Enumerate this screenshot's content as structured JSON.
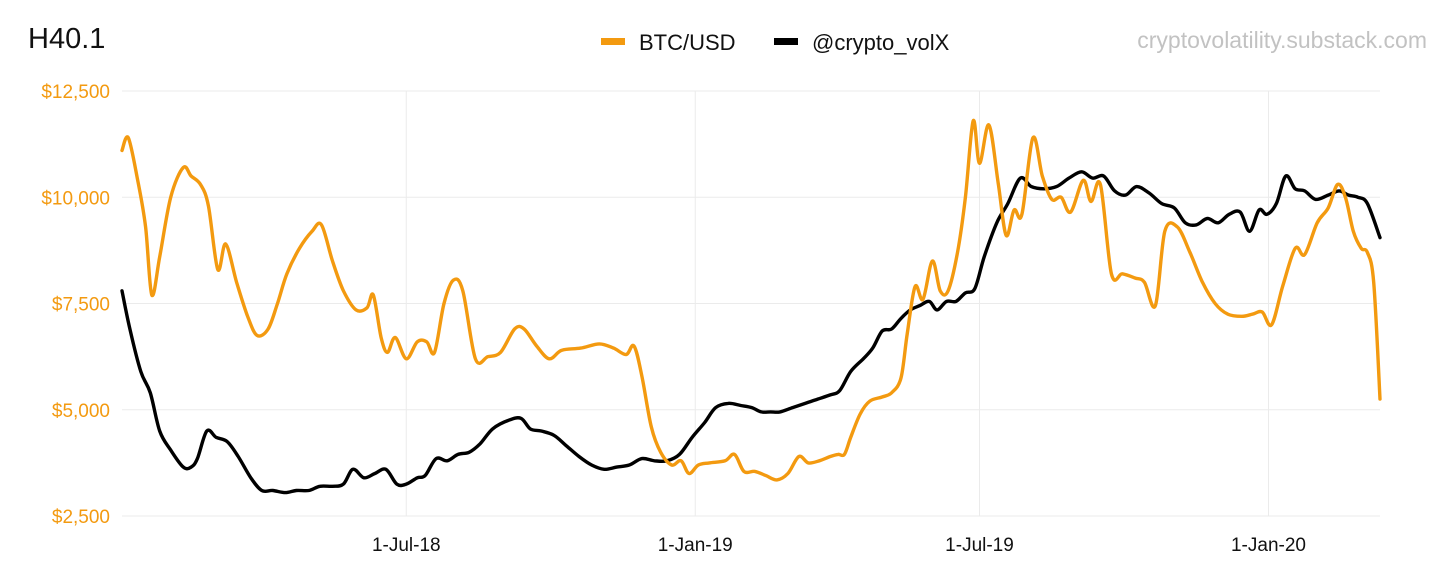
{
  "colors": {
    "btc": "#f39a10",
    "vol": "#000000",
    "grid": "#ebebeb",
    "watermark": "#c2c2c2"
  },
  "chart_data": {
    "type": "line",
    "title": "H40.1",
    "source_label": "cryptovolatility.substack.com",
    "x_type": "date",
    "xlim": [
      "2018-01-01",
      "2020-03-12"
    ],
    "x_ticks": [
      {
        "value": "2018-07-01",
        "label": "1-Jul-18"
      },
      {
        "value": "2019-01-01",
        "label": "1-Jan-19"
      },
      {
        "value": "2019-07-01",
        "label": "1-Jul-19"
      },
      {
        "value": "2020-01-01",
        "label": "1-Jan-20"
      }
    ],
    "ylim": [
      2500,
      12500
    ],
    "y_ticks": [
      {
        "value": 2500,
        "label": "$2,500"
      },
      {
        "value": 5000,
        "label": "$5,000"
      },
      {
        "value": 7500,
        "label": "$7,500"
      },
      {
        "value": 10000,
        "label": "$10,000"
      },
      {
        "value": 12500,
        "label": "$12,500"
      }
    ],
    "legend": {
      "position": "top-center"
    },
    "grid": true,
    "series": [
      {
        "name": "BTC/USD",
        "color": "#f39a10",
        "points": [
          [
            "2018-01-01",
            11100
          ],
          [
            "2018-01-05",
            11400
          ],
          [
            "2018-01-11",
            10400
          ],
          [
            "2018-01-16",
            9300
          ],
          [
            "2018-01-20",
            7700
          ],
          [
            "2018-01-25",
            8600
          ],
          [
            "2018-02-01",
            10000
          ],
          [
            "2018-02-09",
            10700
          ],
          [
            "2018-02-14",
            10500
          ],
          [
            "2018-02-20",
            10300
          ],
          [
            "2018-02-25",
            9800
          ],
          [
            "2018-03-03",
            8300
          ],
          [
            "2018-03-08",
            8900
          ],
          [
            "2018-03-15",
            8000
          ],
          [
            "2018-03-22",
            7200
          ],
          [
            "2018-03-28",
            6750
          ],
          [
            "2018-04-04",
            6900
          ],
          [
            "2018-04-10",
            7500
          ],
          [
            "2018-04-16",
            8200
          ],
          [
            "2018-04-24",
            8800
          ],
          [
            "2018-05-02",
            9200
          ],
          [
            "2018-05-08",
            9350
          ],
          [
            "2018-05-15",
            8500
          ],
          [
            "2018-05-22",
            7800
          ],
          [
            "2018-05-30",
            7350
          ],
          [
            "2018-06-06",
            7400
          ],
          [
            "2018-06-10",
            7700
          ],
          [
            "2018-06-15",
            6700
          ],
          [
            "2018-06-19",
            6350
          ],
          [
            "2018-06-24",
            6700
          ],
          [
            "2018-07-01",
            6200
          ],
          [
            "2018-07-08",
            6600
          ],
          [
            "2018-07-14",
            6600
          ],
          [
            "2018-07-19",
            6350
          ],
          [
            "2018-07-25",
            7500
          ],
          [
            "2018-07-31",
            8050
          ],
          [
            "2018-08-06",
            7800
          ],
          [
            "2018-08-14",
            6200
          ],
          [
            "2018-08-22",
            6250
          ],
          [
            "2018-08-30",
            6350
          ],
          [
            "2018-09-08",
            6900
          ],
          [
            "2018-09-14",
            6900
          ],
          [
            "2018-09-22",
            6500
          ],
          [
            "2018-09-30",
            6200
          ],
          [
            "2018-10-08",
            6400
          ],
          [
            "2018-10-20",
            6450
          ],
          [
            "2018-11-01",
            6550
          ],
          [
            "2018-11-10",
            6450
          ],
          [
            "2018-11-18",
            6300
          ],
          [
            "2018-11-23",
            6500
          ],
          [
            "2018-11-28",
            5800
          ],
          [
            "2018-12-04",
            4600
          ],
          [
            "2018-12-10",
            4000
          ],
          [
            "2018-12-17",
            3700
          ],
          [
            "2018-12-23",
            3800
          ],
          [
            "2018-12-28",
            3500
          ],
          [
            "2019-01-03",
            3700
          ],
          [
            "2019-01-10",
            3750
          ],
          [
            "2019-01-20",
            3800
          ],
          [
            "2019-01-26",
            3950
          ],
          [
            "2019-02-01",
            3550
          ],
          [
            "2019-02-08",
            3550
          ],
          [
            "2019-02-15",
            3450
          ],
          [
            "2019-02-22",
            3350
          ],
          [
            "2019-03-01",
            3500
          ],
          [
            "2019-03-08",
            3900
          ],
          [
            "2019-03-14",
            3750
          ],
          [
            "2019-03-21",
            3800
          ],
          [
            "2019-03-28",
            3900
          ],
          [
            "2019-04-02",
            3950
          ],
          [
            "2019-04-06",
            3950
          ],
          [
            "2019-04-10",
            4350
          ],
          [
            "2019-04-16",
            4900
          ],
          [
            "2019-04-22",
            5200
          ],
          [
            "2019-04-30",
            5300
          ],
          [
            "2019-05-06",
            5400
          ],
          [
            "2019-05-12",
            5750
          ],
          [
            "2019-05-16",
            6800
          ],
          [
            "2019-05-21",
            7900
          ],
          [
            "2019-05-26",
            7600
          ],
          [
            "2019-06-01",
            8500
          ],
          [
            "2019-06-06",
            7800
          ],
          [
            "2019-06-11",
            7800
          ],
          [
            "2019-06-17",
            8700
          ],
          [
            "2019-06-22",
            10000
          ],
          [
            "2019-06-27",
            11800
          ],
          [
            "2019-07-01",
            10800
          ],
          [
            "2019-07-07",
            11700
          ],
          [
            "2019-07-13",
            10300
          ],
          [
            "2019-07-18",
            9100
          ],
          [
            "2019-07-23",
            9700
          ],
          [
            "2019-07-28",
            9600
          ],
          [
            "2019-08-04",
            11400
          ],
          [
            "2019-08-10",
            10500
          ],
          [
            "2019-08-16",
            9950
          ],
          [
            "2019-08-22",
            10000
          ],
          [
            "2019-08-28",
            9650
          ],
          [
            "2019-09-05",
            10400
          ],
          [
            "2019-09-10",
            9900
          ],
          [
            "2019-09-16",
            10300
          ],
          [
            "2019-09-23",
            8200
          ],
          [
            "2019-09-30",
            8200
          ],
          [
            "2019-10-08",
            8100
          ],
          [
            "2019-10-14",
            8000
          ],
          [
            "2019-10-21",
            7450
          ],
          [
            "2019-10-27",
            9200
          ],
          [
            "2019-11-04",
            9300
          ],
          [
            "2019-11-12",
            8700
          ],
          [
            "2019-11-20",
            8000
          ],
          [
            "2019-11-28",
            7500
          ],
          [
            "2019-12-06",
            7250
          ],
          [
            "2019-12-15",
            7200
          ],
          [
            "2019-12-22",
            7250
          ],
          [
            "2019-12-28",
            7300
          ],
          [
            "2020-01-03",
            7000
          ],
          [
            "2020-01-10",
            7900
          ],
          [
            "2020-01-18",
            8800
          ],
          [
            "2020-01-24",
            8650
          ],
          [
            "2020-02-01",
            9400
          ],
          [
            "2020-02-08",
            9750
          ],
          [
            "2020-02-14",
            10300
          ],
          [
            "2020-02-19",
            10000
          ],
          [
            "2020-02-24",
            9200
          ],
          [
            "2020-02-29",
            8800
          ],
          [
            "2020-03-04",
            8700
          ],
          [
            "2020-03-08",
            8000
          ],
          [
            "2020-03-12",
            5250
          ]
        ]
      },
      {
        "name": "@crypto_volX",
        "color": "#000000",
        "points": [
          [
            "2018-01-01",
            7800
          ],
          [
            "2018-01-06",
            6900
          ],
          [
            "2018-01-13",
            5900
          ],
          [
            "2018-01-19",
            5400
          ],
          [
            "2018-01-25",
            4500
          ],
          [
            "2018-02-01",
            4050
          ],
          [
            "2018-02-09",
            3650
          ],
          [
            "2018-02-14",
            3650
          ],
          [
            "2018-02-18",
            3850
          ],
          [
            "2018-02-24",
            4500
          ],
          [
            "2018-03-02",
            4350
          ],
          [
            "2018-03-09",
            4250
          ],
          [
            "2018-03-16",
            3900
          ],
          [
            "2018-03-24",
            3400
          ],
          [
            "2018-03-31",
            3100
          ],
          [
            "2018-04-07",
            3100
          ],
          [
            "2018-04-15",
            3050
          ],
          [
            "2018-04-22",
            3100
          ],
          [
            "2018-04-30",
            3100
          ],
          [
            "2018-05-07",
            3200
          ],
          [
            "2018-05-15",
            3200
          ],
          [
            "2018-05-22",
            3250
          ],
          [
            "2018-05-28",
            3600
          ],
          [
            "2018-06-04",
            3400
          ],
          [
            "2018-06-11",
            3500
          ],
          [
            "2018-06-18",
            3600
          ],
          [
            "2018-06-25",
            3250
          ],
          [
            "2018-07-01",
            3250
          ],
          [
            "2018-07-08",
            3400
          ],
          [
            "2018-07-13",
            3450
          ],
          [
            "2018-07-20",
            3850
          ],
          [
            "2018-07-27",
            3800
          ],
          [
            "2018-08-03",
            3950
          ],
          [
            "2018-08-10",
            4000
          ],
          [
            "2018-08-17",
            4200
          ],
          [
            "2018-08-25",
            4550
          ],
          [
            "2018-09-04",
            4750
          ],
          [
            "2018-09-12",
            4800
          ],
          [
            "2018-09-18",
            4550
          ],
          [
            "2018-09-25",
            4500
          ],
          [
            "2018-10-03",
            4400
          ],
          [
            "2018-10-11",
            4150
          ],
          [
            "2018-10-19",
            3900
          ],
          [
            "2018-10-27",
            3700
          ],
          [
            "2018-11-04",
            3600
          ],
          [
            "2018-11-12",
            3650
          ],
          [
            "2018-11-20",
            3700
          ],
          [
            "2018-11-28",
            3850
          ],
          [
            "2018-12-06",
            3800
          ],
          [
            "2018-12-14",
            3800
          ],
          [
            "2018-12-22",
            3950
          ],
          [
            "2018-12-30",
            4350
          ],
          [
            "2019-01-07",
            4700
          ],
          [
            "2019-01-14",
            5050
          ],
          [
            "2019-01-22",
            5150
          ],
          [
            "2019-01-30",
            5100
          ],
          [
            "2019-02-06",
            5050
          ],
          [
            "2019-02-12",
            4950
          ],
          [
            "2019-02-18",
            4950
          ],
          [
            "2019-02-24",
            4950
          ],
          [
            "2019-03-04",
            5050
          ],
          [
            "2019-03-12",
            5150
          ],
          [
            "2019-03-20",
            5250
          ],
          [
            "2019-03-28",
            5350
          ],
          [
            "2019-04-03",
            5450
          ],
          [
            "2019-04-10",
            5900
          ],
          [
            "2019-04-18",
            6200
          ],
          [
            "2019-04-24",
            6450
          ],
          [
            "2019-04-30",
            6850
          ],
          [
            "2019-05-06",
            6900
          ],
          [
            "2019-05-12",
            7150
          ],
          [
            "2019-05-18",
            7350
          ],
          [
            "2019-05-24",
            7450
          ],
          [
            "2019-05-30",
            7550
          ],
          [
            "2019-06-04",
            7350
          ],
          [
            "2019-06-10",
            7550
          ],
          [
            "2019-06-16",
            7550
          ],
          [
            "2019-06-22",
            7750
          ],
          [
            "2019-06-28",
            7850
          ],
          [
            "2019-07-04",
            8600
          ],
          [
            "2019-07-12",
            9400
          ],
          [
            "2019-07-19",
            9850
          ],
          [
            "2019-07-27",
            10450
          ],
          [
            "2019-08-03",
            10250
          ],
          [
            "2019-08-11",
            10200
          ],
          [
            "2019-08-19",
            10250
          ],
          [
            "2019-08-27",
            10450
          ],
          [
            "2019-09-04",
            10600
          ],
          [
            "2019-09-11",
            10450
          ],
          [
            "2019-09-18",
            10500
          ],
          [
            "2019-09-25",
            10150
          ],
          [
            "2019-10-02",
            10050
          ],
          [
            "2019-10-09",
            10250
          ],
          [
            "2019-10-17",
            10100
          ],
          [
            "2019-10-25",
            9850
          ],
          [
            "2019-11-02",
            9750
          ],
          [
            "2019-11-09",
            9400
          ],
          [
            "2019-11-16",
            9350
          ],
          [
            "2019-11-23",
            9500
          ],
          [
            "2019-11-30",
            9400
          ],
          [
            "2019-12-07",
            9600
          ],
          [
            "2019-12-14",
            9650
          ],
          [
            "2019-12-20",
            9200
          ],
          [
            "2019-12-26",
            9700
          ],
          [
            "2019-12-31",
            9600
          ],
          [
            "2020-01-06",
            9850
          ],
          [
            "2020-01-12",
            10500
          ],
          [
            "2020-01-18",
            10200
          ],
          [
            "2020-01-24",
            10150
          ],
          [
            "2020-01-31",
            9950
          ],
          [
            "2020-02-08",
            10050
          ],
          [
            "2020-02-15",
            10150
          ],
          [
            "2020-02-21",
            10050
          ],
          [
            "2020-02-27",
            10000
          ],
          [
            "2020-03-04",
            9850
          ],
          [
            "2020-03-12",
            9050
          ]
        ]
      }
    ]
  }
}
